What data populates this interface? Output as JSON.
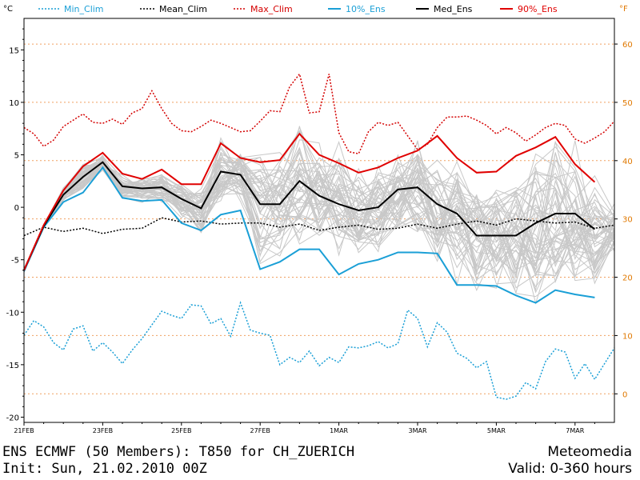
{
  "colors": {
    "min": "#1a9fd6",
    "mean": "#000000",
    "max": "#d40000",
    "p10": "#1a9fd6",
    "med": "#000000",
    "p90": "#e00000",
    "members": "#c8c8c8",
    "fahrenheit": "#e07800",
    "grid": "#f0a060"
  },
  "chart_data": {
    "type": "line",
    "title": "ENS ECMWF (50 Members): T850 for CH_ZUERICH",
    "ylabel_left": "°C",
    "ylabel_right": "°F",
    "ylim": [
      -20.5,
      18
    ],
    "xlim_hours": [
      0,
      360
    ],
    "y_ticks": [
      -20,
      -15,
      -10,
      -5,
      0,
      5,
      10,
      15
    ],
    "y_tick_labels": [
      "-20",
      "-15",
      "-10",
      "-5",
      "0",
      "5",
      "10",
      "15"
    ],
    "f_ticks": [
      0,
      10,
      20,
      30,
      40,
      50,
      60
    ],
    "f_tick_labels": [
      "0",
      "10",
      "20",
      "30",
      "40",
      "50",
      "60"
    ],
    "x_ticks_hours": [
      0,
      48,
      96,
      144,
      192,
      240,
      288,
      336
    ],
    "x_tick_labels": [
      "21FEB",
      "23FEB",
      "25FEB",
      "27FEB",
      "1MAR",
      "3MAR",
      "5MAR",
      "7MAR"
    ],
    "legend": [
      "Min_Clim",
      "Mean_Clim",
      "Max_Clim",
      "10%_Ens",
      "Med_Ens",
      "90%_Ens"
    ],
    "series": [
      {
        "name": "Min_Clim",
        "style": "dotted",
        "color": "min",
        "x": [
          0,
          6,
          12,
          18,
          24,
          30,
          36,
          42,
          48,
          54,
          60,
          66,
          72,
          78,
          84,
          90,
          96,
          102,
          108,
          114,
          120,
          126,
          132,
          138,
          144,
          150,
          156,
          162,
          168,
          174,
          180,
          186,
          192,
          198,
          204,
          210,
          216,
          222,
          228,
          234,
          240,
          246,
          252,
          258,
          264,
          270,
          276,
          282,
          288,
          294,
          300,
          306,
          312,
          318,
          324,
          330,
          336,
          342,
          348,
          354,
          360
        ],
        "y": [
          -12.2,
          -10.8,
          -11.4,
          -12.9,
          -13.6,
          -11.6,
          -11.3,
          -13.7,
          -12.9,
          -13.8,
          -14.9,
          -13.6,
          -12.5,
          -11.2,
          -9.9,
          -10.3,
          -10.6,
          -9.3,
          -9.4,
          -11.1,
          -10.6,
          -12.3,
          -9.1,
          -11.7,
          -12.0,
          -12.2,
          -15.0,
          -14.3,
          -14.8,
          -13.7,
          -15.1,
          -14.3,
          -14.8,
          -13.3,
          -13.4,
          -13.2,
          -12.8,
          -13.4,
          -13.0,
          -9.8,
          -10.6,
          -13.3,
          -11.0,
          -11.9,
          -13.9,
          -14.4,
          -15.3,
          -14.7,
          -18.1,
          -18.3,
          -18.0,
          -16.7,
          -17.3,
          -14.7,
          -13.5,
          -13.8,
          -16.3,
          -14.9,
          -16.4,
          -14.9,
          -13.4
        ]
      },
      {
        "name": "Mean_Clim",
        "style": "dotted",
        "color": "mean",
        "x": [
          0,
          12,
          24,
          36,
          48,
          60,
          72,
          84,
          96,
          108,
          120,
          132,
          144,
          156,
          168,
          180,
          192,
          204,
          216,
          228,
          240,
          252,
          264,
          276,
          288,
          300,
          312,
          324,
          336,
          348,
          360
        ],
        "y": [
          -2.7,
          -1.9,
          -2.3,
          -2.0,
          -2.5,
          -2.1,
          -2.0,
          -1.0,
          -1.4,
          -1.3,
          -1.6,
          -1.5,
          -1.5,
          -1.9,
          -1.6,
          -2.2,
          -1.9,
          -1.7,
          -2.1,
          -2.0,
          -1.6,
          -2.0,
          -1.6,
          -1.3,
          -1.7,
          -1.1,
          -1.3,
          -1.5,
          -1.4,
          -2.0,
          -1.7
        ]
      },
      {
        "name": "Max_Clim",
        "style": "dotted",
        "color": "max",
        "x": [
          0,
          6,
          12,
          18,
          24,
          30,
          36,
          42,
          48,
          54,
          60,
          66,
          72,
          78,
          84,
          90,
          96,
          102,
          108,
          114,
          120,
          126,
          132,
          138,
          144,
          150,
          156,
          162,
          168,
          174,
          180,
          186,
          192,
          198,
          204,
          210,
          216,
          222,
          228,
          234,
          240,
          246,
          252,
          258,
          264,
          270,
          276,
          282,
          288,
          294,
          300,
          306,
          312,
          318,
          324,
          330,
          336,
          342,
          348,
          354,
          360
        ],
        "y": [
          7.6,
          7.0,
          5.8,
          6.4,
          7.7,
          8.3,
          8.9,
          8.1,
          8.0,
          8.4,
          7.9,
          9.0,
          9.4,
          11.1,
          9.4,
          8.0,
          7.3,
          7.2,
          7.7,
          8.3,
          8.0,
          7.6,
          7.2,
          7.3,
          8.2,
          9.2,
          9.1,
          11.5,
          12.7,
          9.0,
          9.1,
          12.7,
          7.1,
          5.3,
          5.1,
          7.2,
          8.1,
          7.8,
          8.1,
          6.8,
          5.5,
          6.0,
          7.6,
          8.6,
          8.6,
          8.7,
          8.3,
          7.8,
          7.0,
          7.6,
          7.1,
          6.3,
          6.9,
          7.6,
          8.0,
          7.8,
          6.5,
          6.1,
          6.6,
          7.2,
          8.2
        ]
      },
      {
        "name": "10%_Ens",
        "style": "solid",
        "color": "p10",
        "x": [
          0,
          12,
          24,
          36,
          48,
          60,
          72,
          84,
          96,
          108,
          120,
          132,
          144,
          156,
          168,
          180,
          192,
          204,
          216,
          228,
          240,
          252,
          264,
          276,
          288,
          300,
          312,
          324,
          336,
          348
        ],
        "y": [
          -6.1,
          -1.9,
          0.5,
          1.4,
          3.8,
          0.9,
          0.6,
          0.7,
          -1.5,
          -2.2,
          -0.7,
          -0.3,
          -5.9,
          -5.2,
          -4.0,
          -4.0,
          -6.4,
          -5.4,
          -5.0,
          -4.3,
          -4.3,
          -4.4,
          -7.4,
          -7.4,
          -7.5,
          -8.4,
          -9.1,
          -7.9,
          -8.3,
          -8.6
        ]
      },
      {
        "name": "Med_Ens",
        "style": "solid",
        "color": "med",
        "x": [
          0,
          12,
          24,
          36,
          48,
          60,
          72,
          84,
          96,
          108,
          120,
          132,
          144,
          156,
          168,
          180,
          192,
          204,
          216,
          228,
          240,
          252,
          264,
          276,
          288,
          300,
          312,
          324,
          336,
          348
        ],
        "y": [
          -6.0,
          -1.8,
          1.2,
          2.9,
          4.3,
          2.0,
          1.8,
          1.9,
          0.8,
          -0.1,
          3.4,
          3.1,
          0.3,
          0.3,
          2.5,
          1.1,
          0.3,
          -0.3,
          0.0,
          1.7,
          1.9,
          0.3,
          -0.6,
          -2.7,
          -2.7,
          -2.7,
          -1.5,
          -0.6,
          -0.6,
          -2.1
        ]
      },
      {
        "name": "90%_Ens",
        "style": "solid",
        "color": "p90",
        "x": [
          0,
          12,
          24,
          36,
          48,
          60,
          72,
          84,
          96,
          108,
          120,
          132,
          144,
          156,
          168,
          180,
          192,
          204,
          216,
          228,
          240,
          252,
          264,
          276,
          288,
          300,
          312,
          324,
          336,
          348
        ],
        "y": [
          -6.0,
          -1.7,
          1.6,
          3.9,
          5.2,
          3.2,
          2.7,
          3.6,
          2.2,
          2.2,
          6.1,
          4.7,
          4.3,
          4.5,
          7.0,
          5.0,
          4.2,
          3.3,
          3.8,
          4.7,
          5.4,
          6.8,
          4.7,
          3.3,
          3.4,
          4.9,
          5.7,
          6.7,
          4.1,
          2.4
        ]
      }
    ]
  },
  "legend_labels": {
    "min": "Min_Clim",
    "mean": "Mean_Clim",
    "max": "Max_Clim",
    "p10": "10%_Ens",
    "med": "Med_Ens",
    "p90": "90%_Ens",
    "unit_c": "°C",
    "unit_f": "°F"
  },
  "footer": {
    "title": "ENS ECMWF (50 Members): T850 for CH_ZUERICH",
    "init": "Init: Sun, 21.02.2010 00Z",
    "brand": "Meteomedia",
    "valid": "Valid: 0-360 hours"
  }
}
